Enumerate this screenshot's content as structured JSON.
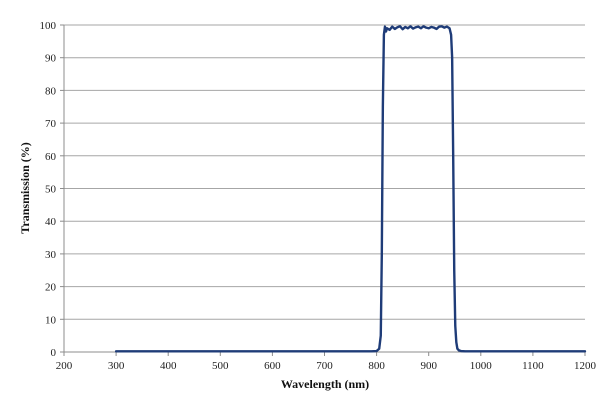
{
  "chart_data": {
    "type": "line",
    "title": "",
    "xlabel": "Wavelength (nm)",
    "ylabel": "Transmission (%)",
    "xlim": [
      200,
      1200
    ],
    "ylim": [
      0,
      100
    ],
    "xticks": [
      200,
      300,
      400,
      500,
      600,
      700,
      800,
      900,
      1000,
      1100,
      1200
    ],
    "yticks": [
      0,
      10,
      20,
      30,
      40,
      50,
      60,
      70,
      80,
      90,
      100
    ],
    "grid": true,
    "legend": "none",
    "series": [
      {
        "color": "#1f3c78",
        "x": [
          300,
          400,
          500,
          600,
          700,
          790,
          800,
          805,
          808,
          810,
          812,
          814,
          816,
          818,
          820,
          825,
          830,
          835,
          840,
          845,
          850,
          855,
          860,
          865,
          870,
          875,
          880,
          885,
          890,
          895,
          900,
          905,
          910,
          915,
          920,
          925,
          930,
          935,
          940,
          943,
          945,
          947,
          949,
          951,
          953,
          955,
          958,
          962,
          970,
          1000,
          1100,
          1200
        ],
        "y": [
          0.2,
          0.2,
          0.2,
          0.2,
          0.2,
          0.2,
          0.3,
          1,
          5,
          30,
          75,
          97,
          99.5,
          98,
          99,
          98.5,
          99.5,
          98.8,
          99.3,
          99.6,
          98.7,
          99.4,
          99,
          99.6,
          98.9,
          99.3,
          99.5,
          99,
          99.6,
          99.2,
          99,
          99.4,
          99.2,
          98.8,
          99.5,
          99.6,
          99.2,
          99.5,
          99,
          97,
          90,
          60,
          25,
          8,
          3,
          1,
          0.5,
          0.3,
          0.2,
          0.2,
          0.2,
          0.2
        ]
      }
    ]
  }
}
